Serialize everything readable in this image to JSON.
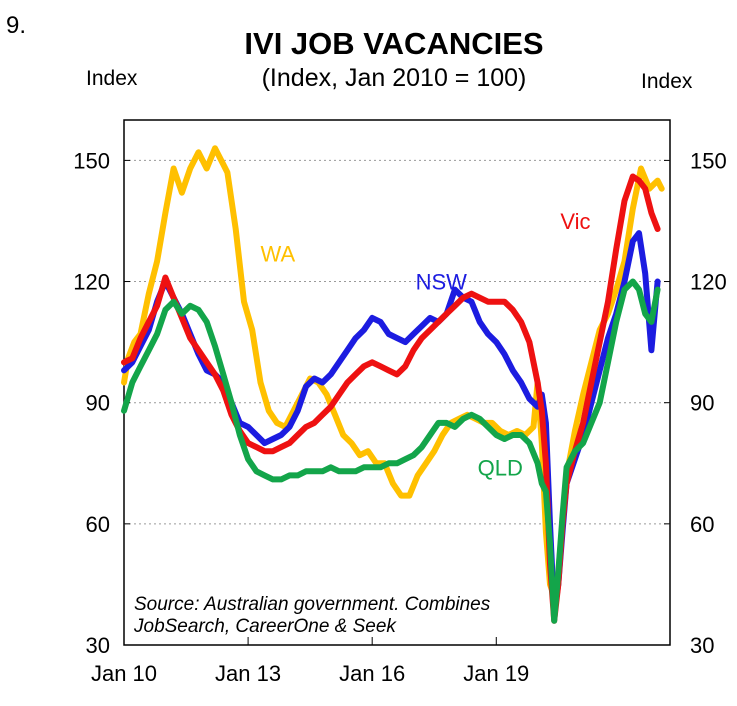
{
  "figure_number": "9.",
  "chart_data": {
    "type": "line",
    "title": "IVI JOB VACANCIES",
    "subtitle": "(Index, Jan 2010 = 100)",
    "left_axis_label": "Index",
    "right_axis_label": "Index",
    "xlabel": "",
    "ylabel": "Index",
    "x_unit": "years since Jan 2010",
    "xlim": [
      0,
      13.2
    ],
    "ylim": [
      30,
      160
    ],
    "grid": true,
    "y_ticks": [
      30,
      60,
      90,
      120,
      150
    ],
    "y_tick_labels": [
      "30",
      "60",
      "90",
      "120",
      "150"
    ],
    "x_ticks": [
      0,
      3,
      6,
      9
    ],
    "x_tick_labels": [
      "Jan 10",
      "Jan 13",
      "Jan 16",
      "Jan 19"
    ],
    "source_text": [
      "Source: Australian government. Combines",
      "JobSearch, CareerOne & Seek"
    ],
    "series": [
      {
        "name": "WA",
        "label": "WA",
        "color": "#FFC000",
        "x": [
          0,
          0.1,
          0.25,
          0.4,
          0.6,
          0.8,
          1.0,
          1.2,
          1.4,
          1.6,
          1.8,
          2.0,
          2.2,
          2.4,
          2.5,
          2.7,
          2.9,
          3.1,
          3.3,
          3.5,
          3.7,
          3.9,
          4.1,
          4.3,
          4.5,
          4.7,
          4.9,
          5.1,
          5.3,
          5.5,
          5.7,
          5.9,
          6.1,
          6.3,
          6.5,
          6.7,
          6.9,
          7.1,
          7.3,
          7.5,
          7.7,
          7.9,
          8.1,
          8.3,
          8.5,
          8.7,
          8.9,
          9.1,
          9.3,
          9.5,
          9.7,
          9.9,
          10.0,
          10.1,
          10.2,
          10.3,
          10.4,
          10.5,
          10.6,
          10.7,
          10.9,
          11.1,
          11.3,
          11.5,
          11.7,
          11.9,
          12.1,
          12.3,
          12.5,
          12.7,
          12.9,
          13.0
        ],
        "values": [
          95,
          101,
          105,
          107,
          117,
          125,
          137,
          148,
          142,
          148,
          152,
          148,
          153,
          149,
          147,
          133,
          115,
          108,
          95,
          88,
          85,
          84,
          88,
          92,
          96,
          95,
          92,
          87,
          82,
          80,
          77,
          78,
          75,
          75,
          70,
          67,
          67,
          72,
          75,
          78,
          82,
          85,
          86,
          87,
          86,
          85,
          85,
          83,
          82,
          83,
          82,
          84,
          95,
          80,
          58,
          45,
          42,
          48,
          60,
          72,
          83,
          92,
          100,
          108,
          112,
          118,
          125,
          138,
          148,
          143,
          145,
          143
        ]
      },
      {
        "name": "NSW",
        "label": "NSW",
        "color": "#1C1CE0",
        "x": [
          0,
          0.2,
          0.4,
          0.6,
          0.8,
          1.0,
          1.2,
          1.4,
          1.6,
          1.8,
          2.0,
          2.2,
          2.4,
          2.6,
          2.8,
          3.0,
          3.2,
          3.4,
          3.6,
          3.8,
          4.0,
          4.2,
          4.4,
          4.6,
          4.8,
          5.0,
          5.2,
          5.4,
          5.6,
          5.8,
          6.0,
          6.2,
          6.4,
          6.6,
          6.8,
          7.0,
          7.2,
          7.4,
          7.6,
          7.8,
          8.0,
          8.2,
          8.4,
          8.6,
          8.8,
          9.0,
          9.2,
          9.4,
          9.6,
          9.8,
          10.0,
          10.1,
          10.2,
          10.3,
          10.4,
          10.5,
          10.6,
          10.7,
          10.9,
          11.1,
          11.3,
          11.5,
          11.7,
          11.9,
          12.1,
          12.3,
          12.45,
          12.6,
          12.75,
          12.9
        ],
        "values": [
          98,
          100,
          104,
          108,
          115,
          120,
          116,
          112,
          107,
          102,
          98,
          97,
          95,
          90,
          85,
          84,
          82,
          80,
          81,
          82,
          84,
          88,
          94,
          96,
          95,
          97,
          100,
          103,
          106,
          108,
          111,
          110,
          107,
          106,
          105,
          107,
          109,
          111,
          110,
          112,
          118,
          116,
          115,
          110,
          107,
          105,
          102,
          98,
          95,
          91,
          89,
          92,
          85,
          60,
          38,
          45,
          58,
          70,
          76,
          82,
          90,
          98,
          106,
          112,
          120,
          130,
          132,
          122,
          103,
          120
        ]
      },
      {
        "name": "Vic",
        "label": "Vic",
        "color": "#EE1111",
        "x": [
          0,
          0.2,
          0.4,
          0.6,
          0.8,
          1.0,
          1.2,
          1.4,
          1.6,
          1.8,
          2.0,
          2.2,
          2.4,
          2.6,
          2.8,
          3.0,
          3.2,
          3.4,
          3.6,
          3.8,
          4.0,
          4.2,
          4.4,
          4.6,
          4.8,
          5.0,
          5.2,
          5.4,
          5.6,
          5.8,
          6.0,
          6.2,
          6.4,
          6.6,
          6.8,
          7.0,
          7.2,
          7.4,
          7.6,
          7.8,
          8.0,
          8.2,
          8.4,
          8.6,
          8.8,
          9.0,
          9.2,
          9.4,
          9.6,
          9.8,
          10.0,
          10.1,
          10.2,
          10.3,
          10.4,
          10.5,
          10.6,
          10.7,
          10.9,
          11.1,
          11.3,
          11.5,
          11.7,
          11.9,
          12.1,
          12.3,
          12.45,
          12.6,
          12.75,
          12.9
        ],
        "values": [
          100,
          101,
          106,
          110,
          114,
          121,
          116,
          111,
          106,
          103,
          100,
          97,
          93,
          87,
          83,
          80,
          79,
          78,
          78,
          79,
          80,
          82,
          84,
          85,
          87,
          89,
          92,
          95,
          97,
          99,
          100,
          99,
          98,
          97,
          99,
          103,
          106,
          108,
          110,
          112,
          114,
          116,
          117,
          116,
          115,
          115,
          115,
          113,
          110,
          105,
          95,
          88,
          75,
          50,
          36,
          45,
          60,
          70,
          78,
          85,
          95,
          105,
          115,
          128,
          140,
          146,
          145,
          143,
          137,
          133
        ]
      },
      {
        "name": "QLD",
        "label": "QLD",
        "color": "#13A54A",
        "x": [
          0,
          0.2,
          0.4,
          0.6,
          0.8,
          1.0,
          1.2,
          1.4,
          1.6,
          1.8,
          2.0,
          2.2,
          2.4,
          2.6,
          2.8,
          3.0,
          3.2,
          3.4,
          3.6,
          3.8,
          4.0,
          4.2,
          4.4,
          4.6,
          4.8,
          5.0,
          5.2,
          5.4,
          5.6,
          5.8,
          6.0,
          6.2,
          6.4,
          6.6,
          6.8,
          7.0,
          7.2,
          7.4,
          7.6,
          7.8,
          8.0,
          8.2,
          8.4,
          8.6,
          8.8,
          9.0,
          9.2,
          9.4,
          9.6,
          9.8,
          10.0,
          10.1,
          10.2,
          10.3,
          10.4,
          10.5,
          10.6,
          10.7,
          10.9,
          11.1,
          11.3,
          11.5,
          11.7,
          11.9,
          12.1,
          12.3,
          12.45,
          12.6,
          12.75,
          12.9
        ],
        "values": [
          88,
          95,
          99,
          103,
          107,
          113,
          115,
          112,
          114,
          113,
          110,
          104,
          97,
          90,
          82,
          76,
          73,
          72,
          71,
          71,
          72,
          72,
          73,
          73,
          73,
          74,
          73,
          73,
          73,
          74,
          74,
          74,
          75,
          75,
          76,
          77,
          79,
          82,
          85,
          85,
          84,
          86,
          87,
          86,
          84,
          82,
          81,
          82,
          82,
          80,
          75,
          70,
          68,
          55,
          36,
          48,
          62,
          74,
          78,
          80,
          85,
          90,
          100,
          110,
          118,
          120,
          118,
          112,
          110,
          118
        ]
      }
    ]
  }
}
